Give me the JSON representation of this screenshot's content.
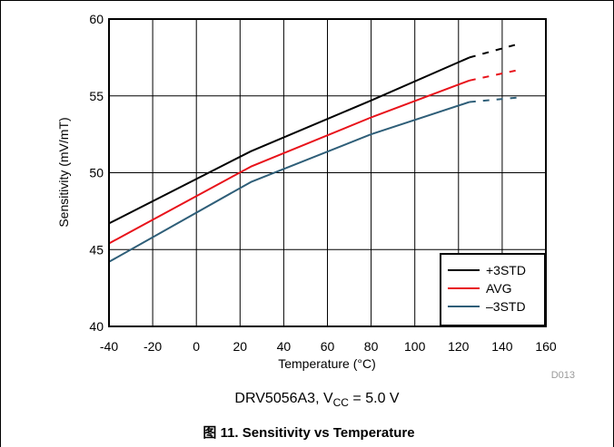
{
  "chart_data": {
    "type": "line",
    "xlabel": "Temperature (°C)",
    "ylabel": "Sensitivity (mV/mT)",
    "xlim": [
      -40,
      160
    ],
    "ylim": [
      40,
      60
    ],
    "x_ticks": [
      "-40",
      "-20",
      "0",
      "20",
      "40",
      "60",
      "80",
      "100",
      "120",
      "140",
      "160"
    ],
    "y_ticks": [
      "40",
      "45",
      "50",
      "55",
      "60"
    ],
    "grid": true,
    "legend_position": "bottom-right",
    "series": [
      {
        "name": "+3STD",
        "color": "#000000",
        "x": [
          -40,
          25,
          80,
          125
        ],
        "y": [
          46.7,
          51.4,
          54.7,
          57.5
        ],
        "extrapolated_x": [
          125,
          148
        ],
        "extrapolated_y": [
          57.5,
          58.4
        ]
      },
      {
        "name": "AVG",
        "color": "#e8121a",
        "x": [
          -40,
          25,
          80,
          125
        ],
        "y": [
          45.4,
          50.4,
          53.6,
          56.0
        ],
        "extrapolated_x": [
          125,
          148
        ],
        "extrapolated_y": [
          56.0,
          56.7
        ]
      },
      {
        "name": "–3STD",
        "color": "#2e5e78",
        "x": [
          -40,
          25,
          80,
          125
        ],
        "y": [
          44.2,
          49.4,
          52.5,
          54.6
        ],
        "extrapolated_x": [
          125,
          148
        ],
        "extrapolated_y": [
          54.6,
          54.9
        ]
      }
    ]
  },
  "figure_code": "D013",
  "condition": {
    "device": "DRV5056A3, V",
    "sub": "CC",
    "rest": " = 5.0 V"
  },
  "caption": "图 11. Sensitivity vs Temperature"
}
